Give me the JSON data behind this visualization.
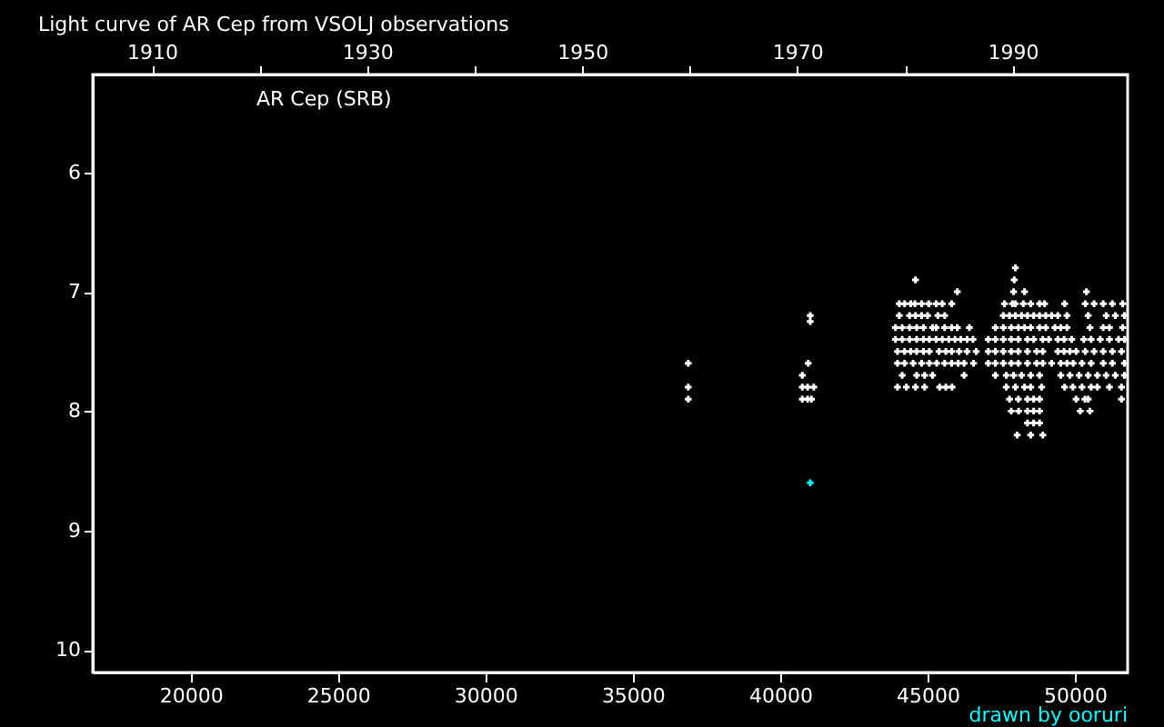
{
  "chart_data": {
    "type": "scatter",
    "title": "Light curve of AR Cep from VSOLJ observations",
    "annotations": [
      "AR Cep (SRB)",
      "drawn by ooruri"
    ],
    "marker": "cross",
    "xlim": [
      16677,
      51788
    ],
    "xticks": [
      20000,
      25000,
      30000,
      35000,
      40000,
      45000,
      50000
    ],
    "x2lim": [
      1904.5,
      2000.7
    ],
    "x2ticks": [
      1910,
      {
        "value": 1920,
        "label": null
      },
      1930,
      {
        "value": 1940,
        "label": null
      },
      1950,
      {
        "value": 1960,
        "label": null
      },
      1970,
      {
        "value": 1980,
        "label": null
      },
      1990
    ],
    "ylim": [
      10.19,
      5.18
    ],
    "yticks": [
      6,
      7,
      8,
      9,
      10
    ],
    "series": [
      {
        "color": "#ffffff",
        "x": [
          36880,
          36880,
          36880,
          41020,
          41020,
          40950,
          40750,
          40750,
          40930,
          41140,
          40750,
          40930,
          41060,
          47980,
          44590,
          47940,
          46010,
          47920,
          48290,
          50390,
          44040,
          44220,
          44430,
          44570,
          44800,
          45040,
          45290,
          45500,
          45820,
          47610,
          47880,
          47980,
          48250,
          48500,
          48800,
          48970,
          49650,
          50350,
          50650,
          50960,
          51270,
          51620,
          44040,
          44390,
          44590,
          44800,
          45000,
          45350,
          45580,
          47570,
          47780,
          47980,
          48190,
          48390,
          48600,
          48800,
          49010,
          49210,
          49420,
          49730,
          50450,
          51060,
          51370,
          51680,
          43910,
          44140,
          44390,
          44630,
          44860,
          45170,
          45290,
          45580,
          45820,
          46010,
          46420,
          47300,
          47570,
          47840,
          48080,
          48290,
          48500,
          48800,
          49010,
          49320,
          49520,
          49730,
          50510,
          50960,
          51170,
          51620,
          43910,
          44140,
          44390,
          44630,
          44860,
          45060,
          45290,
          45500,
          45720,
          45930,
          46130,
          46340,
          46540,
          47060,
          47300,
          47570,
          47840,
          48080,
          48390,
          48600,
          48910,
          49110,
          49420,
          49630,
          49890,
          50300,
          50550,
          50860,
          51170,
          51480,
          51680,
          43980,
          44220,
          44430,
          44630,
          44860,
          45060,
          45390,
          45620,
          45820,
          46070,
          46340,
          46650,
          47060,
          47300,
          47570,
          47840,
          48080,
          48390,
          48700,
          48910,
          49420,
          49630,
          49830,
          50040,
          50350,
          50650,
          50960,
          51270,
          51580,
          43980,
          44220,
          44510,
          44800,
          45060,
          45310,
          45580,
          45820,
          46040,
          46240,
          46560,
          47060,
          47300,
          47570,
          47840,
          48080,
          48390,
          48700,
          48910,
          49210,
          49520,
          49730,
          49940,
          50240,
          50550,
          50960,
          51270,
          51680,
          44140,
          44630,
          44900,
          45170,
          46240,
          47300,
          47670,
          47920,
          48190,
          48500,
          48800,
          49520,
          49830,
          50140,
          50450,
          50760,
          51060,
          51370,
          51680,
          43980,
          44280,
          44590,
          44900,
          45410,
          45620,
          45830,
          47670,
          47980,
          48290,
          48500,
          48870,
          49650,
          49930,
          50240,
          50550,
          50760,
          51170,
          51580,
          47780,
          48080,
          48390,
          48600,
          48800,
          50040,
          50340,
          50450,
          51580,
          47840,
          48090,
          48390,
          48600,
          48800,
          50180,
          50510,
          48390,
          48600,
          48800,
          48040,
          48500,
          48910
        ],
        "values": [
          7.6,
          7.8,
          7.9,
          7.2,
          7.25,
          7.6,
          7.7,
          7.8,
          7.8,
          7.8,
          7.9,
          7.9,
          7.9,
          6.8,
          6.9,
          6.9,
          7.0,
          7.0,
          7.0,
          7.0,
          7.1,
          7.1,
          7.1,
          7.1,
          7.1,
          7.1,
          7.1,
          7.1,
          7.1,
          7.1,
          7.1,
          7.1,
          7.1,
          7.1,
          7.1,
          7.1,
          7.1,
          7.1,
          7.1,
          7.1,
          7.1,
          7.1,
          7.2,
          7.2,
          7.2,
          7.2,
          7.2,
          7.2,
          7.2,
          7.2,
          7.2,
          7.2,
          7.2,
          7.2,
          7.2,
          7.2,
          7.2,
          7.2,
          7.2,
          7.2,
          7.2,
          7.2,
          7.2,
          7.2,
          7.3,
          7.3,
          7.3,
          7.3,
          7.3,
          7.3,
          7.3,
          7.3,
          7.3,
          7.3,
          7.3,
          7.3,
          7.3,
          7.3,
          7.3,
          7.3,
          7.3,
          7.3,
          7.3,
          7.3,
          7.3,
          7.3,
          7.3,
          7.3,
          7.3,
          7.3,
          7.4,
          7.4,
          7.4,
          7.4,
          7.4,
          7.4,
          7.4,
          7.4,
          7.4,
          7.4,
          7.4,
          7.4,
          7.4,
          7.4,
          7.4,
          7.4,
          7.4,
          7.4,
          7.4,
          7.4,
          7.4,
          7.4,
          7.4,
          7.4,
          7.4,
          7.4,
          7.4,
          7.4,
          7.4,
          7.4,
          7.4,
          7.5,
          7.5,
          7.5,
          7.5,
          7.5,
          7.5,
          7.5,
          7.5,
          7.5,
          7.5,
          7.5,
          7.5,
          7.5,
          7.5,
          7.5,
          7.5,
          7.5,
          7.5,
          7.5,
          7.5,
          7.5,
          7.5,
          7.5,
          7.5,
          7.5,
          7.5,
          7.5,
          7.5,
          7.5,
          7.6,
          7.6,
          7.6,
          7.6,
          7.6,
          7.6,
          7.6,
          7.6,
          7.6,
          7.6,
          7.6,
          7.6,
          7.6,
          7.6,
          7.6,
          7.6,
          7.6,
          7.6,
          7.6,
          7.6,
          7.6,
          7.6,
          7.6,
          7.6,
          7.6,
          7.6,
          7.6,
          7.6,
          7.7,
          7.7,
          7.7,
          7.7,
          7.7,
          7.7,
          7.7,
          7.7,
          7.7,
          7.7,
          7.7,
          7.7,
          7.7,
          7.7,
          7.7,
          7.7,
          7.7,
          7.7,
          7.7,
          7.8,
          7.8,
          7.8,
          7.8,
          7.8,
          7.8,
          7.8,
          7.8,
          7.8,
          7.8,
          7.8,
          7.8,
          7.8,
          7.8,
          7.8,
          7.8,
          7.8,
          7.8,
          7.8,
          7.9,
          7.9,
          7.9,
          7.9,
          7.9,
          7.9,
          7.9,
          7.9,
          7.9,
          8.0,
          8.0,
          8.0,
          8.0,
          8.0,
          8.0,
          8.0,
          8.1,
          8.1,
          8.1,
          8.2,
          8.2,
          8.2
        ]
      },
      {
        "color": "#00ffff",
        "x": [
          41020
        ],
        "values": [
          8.6
        ]
      }
    ]
  }
}
